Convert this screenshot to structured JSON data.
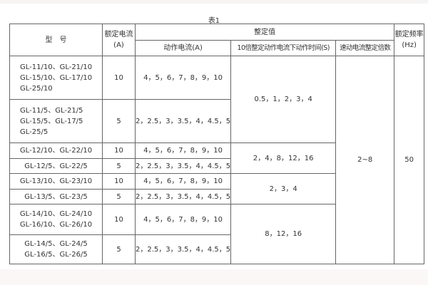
{
  "caption": "表1",
  "headers": {
    "model": "型　号",
    "rated_current": "额定电流(A)",
    "setting": "整定值",
    "action_current": "动作电流(A)",
    "action_time": "10倍整定动作电流下动作时间(S)",
    "quick_multiple": "速动电流整定倍数",
    "rated_freq": "额定频率(Hz)"
  },
  "rows": [
    {
      "models": [
        "GL-11/10、GL-21/10",
        "GL-15/10、GL-17/10",
        "GL-25/10"
      ],
      "current": "10",
      "action_current": "4，5，6，7，8，9，10"
    },
    {
      "models": [
        "GL-11/5、GL-21/5",
        "GL-15/5、GL-17/5",
        "GL-25/5"
      ],
      "current": "5",
      "action_current": "2，2.5，3，3.5，4，4.5，5"
    },
    {
      "models": [
        "GL-12/10、GL-22/10"
      ],
      "current": "10",
      "action_current": "4，5，6，7，8，9，10"
    },
    {
      "models": [
        "GL-12/5、GL-22/5"
      ],
      "current": "5",
      "action_current": "2，2.5，3，3.5，4，4.5，5"
    },
    {
      "models": [
        "GL-13/10、GL-23/10"
      ],
      "current": "10",
      "action_current": "4，5，6，7，8，9，10"
    },
    {
      "models": [
        "GL-13/5、GL-23/5"
      ],
      "current": "5",
      "action_current": "2，2.5，3，3.5，4，4.5，5"
    },
    {
      "models": [
        "GL-14/10、GL-24/10",
        "GL-16/10、GL-26/10"
      ],
      "current": "10",
      "action_current": "4，5，6，7，8，9，10"
    },
    {
      "models": [
        "GL-14/5、GL-24/5",
        "GL-16/5、GL-26/5"
      ],
      "current": "5",
      "action_current": "2，2.5，3，3.5，4，4.5，5"
    }
  ],
  "action_times": [
    "0.5，1，2，3，4",
    "2，4，8，12，16",
    "2，3，4",
    "8，12，16"
  ],
  "quick_multiple": "2~8",
  "rated_freq": "50"
}
